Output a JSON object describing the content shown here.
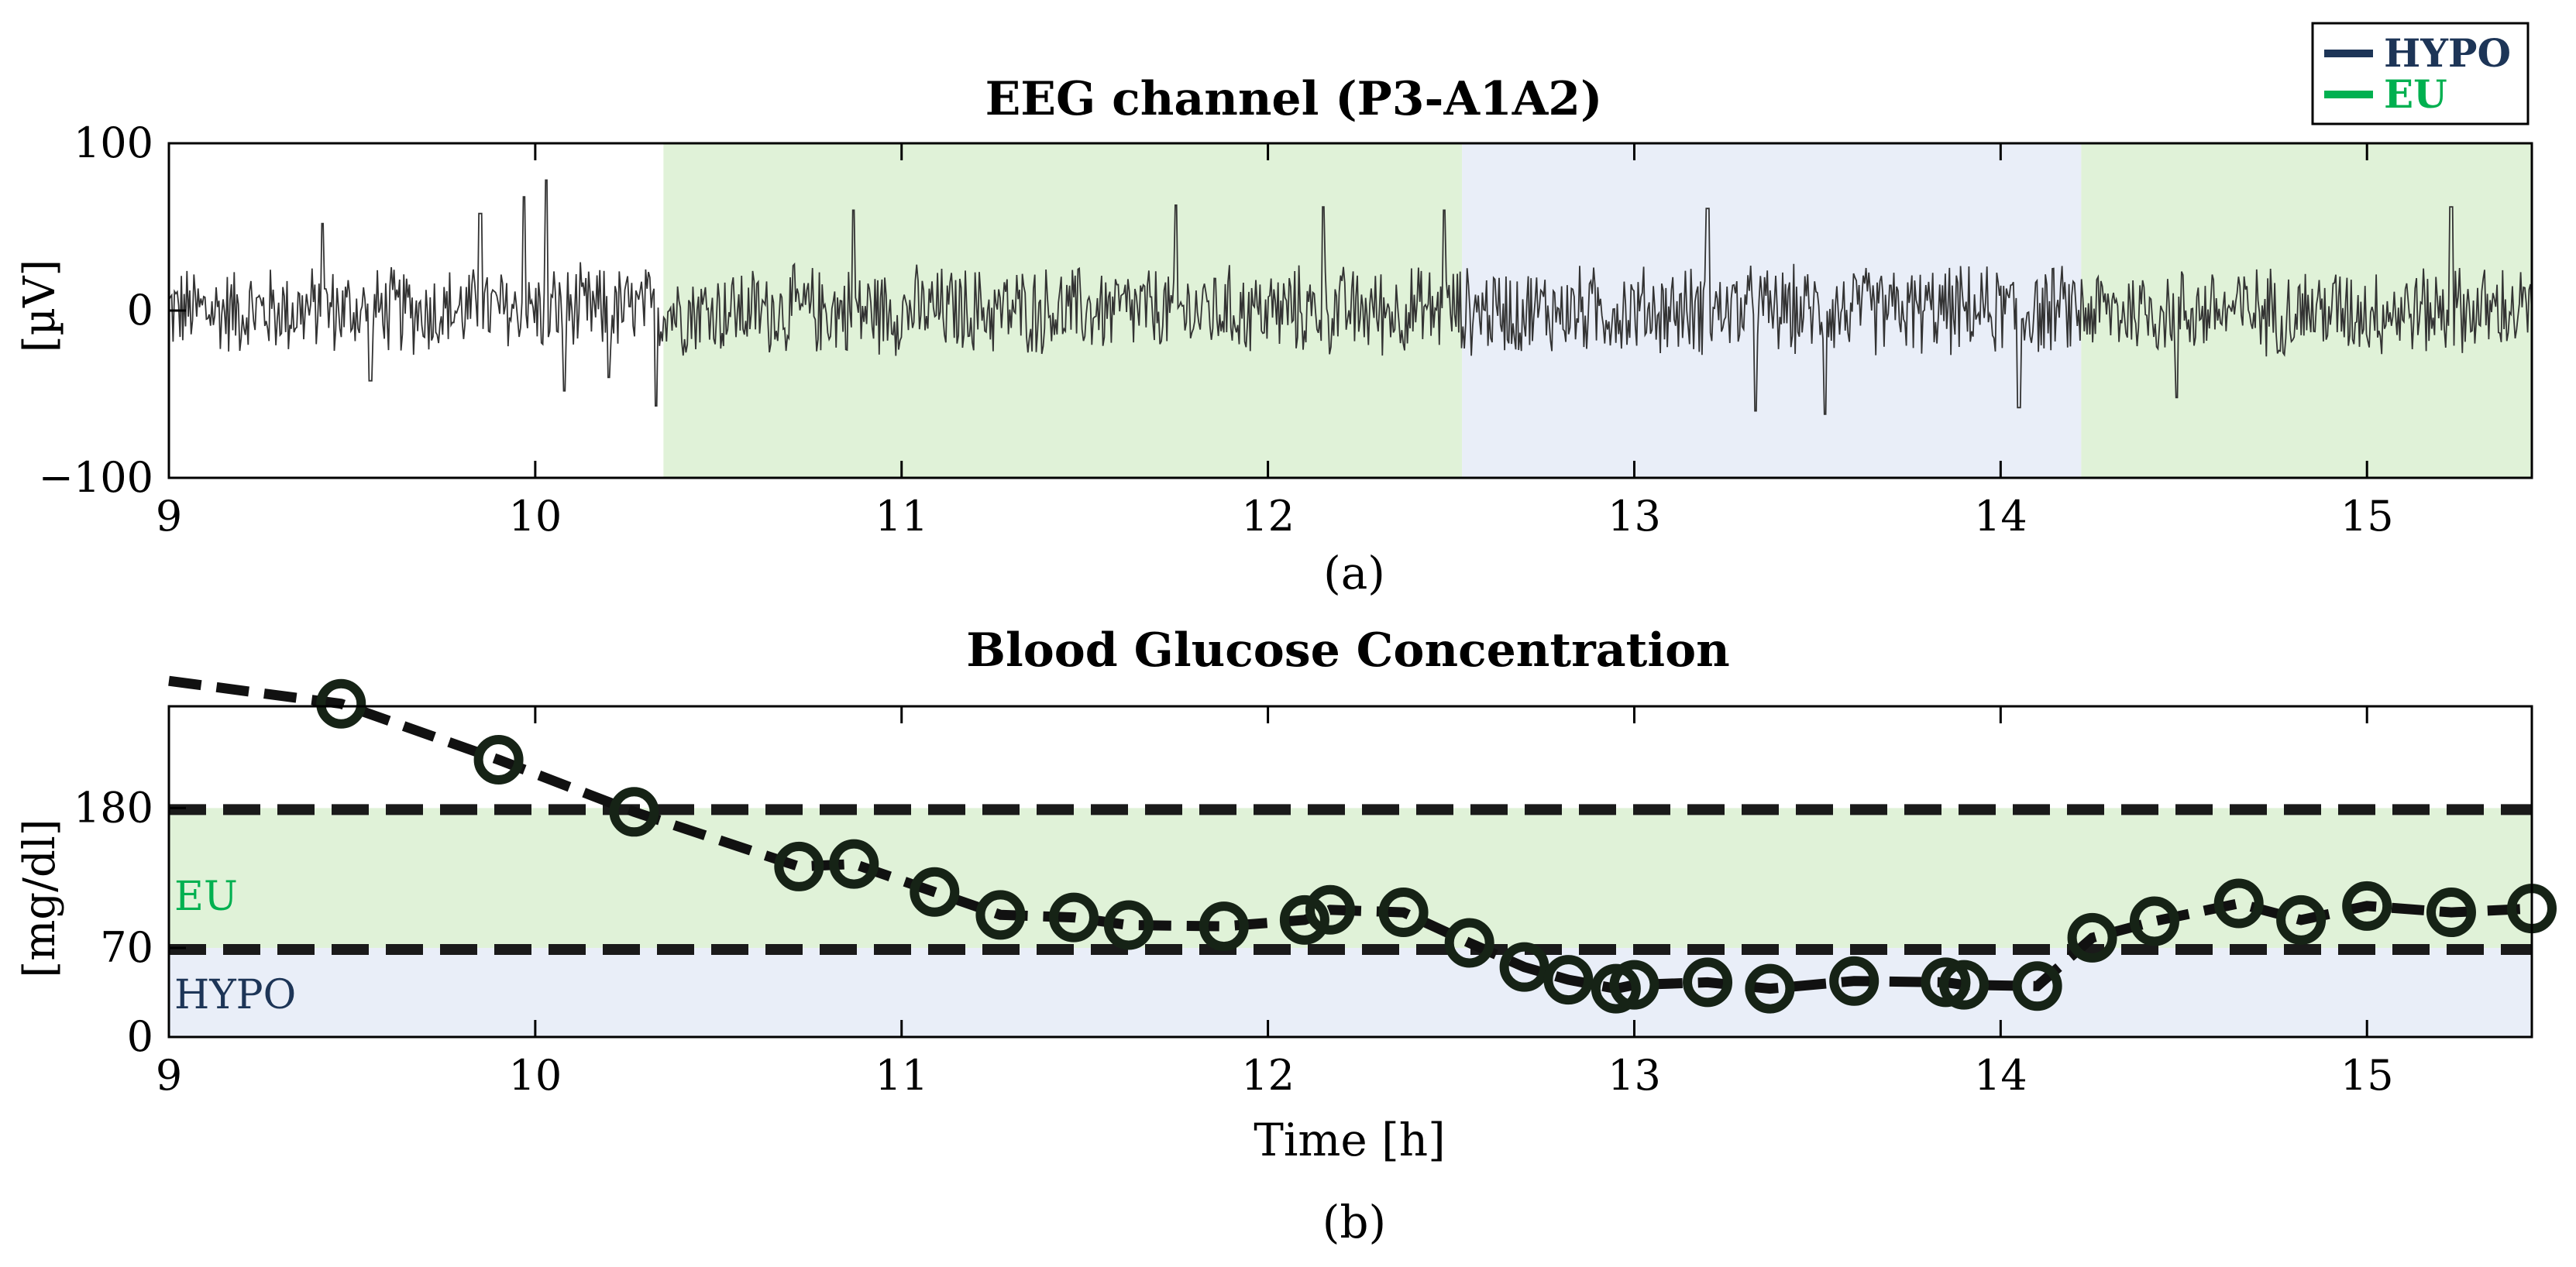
{
  "legend": {
    "items": [
      {
        "label": "HYPO",
        "color": "#1d3557"
      },
      {
        "label": "EU",
        "color": "#00b050"
      }
    ]
  },
  "chart_data": [
    {
      "id": "eeg",
      "type": "line",
      "title": "EEG channel (P3-A1A2)",
      "ylabel": "[µV]",
      "xlabel": "",
      "caption": "(a)",
      "xlim": [
        9,
        15.45
      ],
      "ylim": [
        -100,
        100
      ],
      "xticks": [
        "9",
        "10",
        "11",
        "12",
        "13",
        "14",
        "15"
      ],
      "yticks": [
        "100",
        "0",
        "−100"
      ],
      "ytick_values": [
        100,
        0,
        -100
      ],
      "regions": [
        {
          "label": "EU",
          "start": 10.35,
          "end": 12.53,
          "color": "#e0f2d8"
        },
        {
          "label": "HYPO",
          "start": 12.53,
          "end": 14.22,
          "color": "#e9eef8"
        },
        {
          "label": "EU",
          "start": 14.22,
          "end": 15.45,
          "color": "#e0f2d8"
        }
      ],
      "signal": {
        "description": "oscillating EEG trace, amplitude mostly within ±30 µV with peaks to about ±60 µV",
        "typical_amplitude": 30,
        "peak_amplitude": 80,
        "spikes": [
          {
            "x": 9.42,
            "y": 52
          },
          {
            "x": 9.55,
            "y": -42
          },
          {
            "x": 9.85,
            "y": 58
          },
          {
            "x": 9.97,
            "y": 68
          },
          {
            "x": 10.03,
            "y": 78
          },
          {
            "x": 10.08,
            "y": -48
          },
          {
            "x": 10.2,
            "y": -40
          },
          {
            "x": 10.33,
            "y": -57
          },
          {
            "x": 10.87,
            "y": 60
          },
          {
            "x": 11.75,
            "y": 63
          },
          {
            "x": 12.15,
            "y": 62
          },
          {
            "x": 12.48,
            "y": 60
          },
          {
            "x": 13.2,
            "y": 61
          },
          {
            "x": 13.33,
            "y": -60
          },
          {
            "x": 13.52,
            "y": -62
          },
          {
            "x": 14.05,
            "y": -58
          },
          {
            "x": 14.48,
            "y": -52
          },
          {
            "x": 15.23,
            "y": 62
          }
        ]
      }
    },
    {
      "id": "glucose",
      "type": "line",
      "title": "Blood Glucose Concentration",
      "ylabel": "[mg/dl]",
      "xlabel": "Time [h]",
      "caption": "(b)",
      "xlim": [
        9,
        15.45
      ],
      "ylim": [
        0,
        260
      ],
      "xticks": [
        "9",
        "10",
        "11",
        "12",
        "13",
        "14",
        "15"
      ],
      "yticks": [
        "180",
        "70",
        "0"
      ],
      "ytick_values": [
        180,
        70,
        0
      ],
      "regions": [
        {
          "label": "EU",
          "low": 70,
          "high": 180,
          "color": "#e0f2d8",
          "label_color": "#00b050"
        },
        {
          "label": "HYPO",
          "low": 0,
          "high": 70,
          "color": "#e9eef8",
          "label_color": "#1d3557"
        }
      ],
      "thresholds": [
        180,
        70
      ],
      "series": [
        {
          "name": "Blood glucose",
          "x": [
            9.0,
            9.47,
            9.9,
            10.27,
            10.72,
            10.87,
            11.09,
            11.27,
            11.47,
            11.62,
            11.88,
            12.1,
            12.17,
            12.37,
            12.55,
            12.7,
            12.82,
            12.95,
            13.0,
            13.2,
            13.37,
            13.6,
            13.85,
            13.9,
            14.1,
            14.25,
            14.42,
            14.65,
            14.82,
            15.0,
            15.23,
            15.45
          ],
          "y": [
            280,
            262,
            218,
            177,
            134,
            136,
            114,
            96,
            94,
            88,
            87,
            92,
            100,
            98,
            74,
            55,
            45,
            38,
            41,
            43,
            38,
            44,
            43,
            41,
            40,
            78,
            91,
            105,
            92,
            103,
            98,
            101
          ],
          "markers": [
            false,
            true,
            true,
            true,
            true,
            true,
            true,
            true,
            true,
            true,
            true,
            true,
            true,
            true,
            true,
            true,
            true,
            true,
            true,
            true,
            true,
            true,
            true,
            true,
            true,
            true,
            true,
            true,
            true,
            true,
            true,
            true
          ]
        }
      ]
    }
  ]
}
